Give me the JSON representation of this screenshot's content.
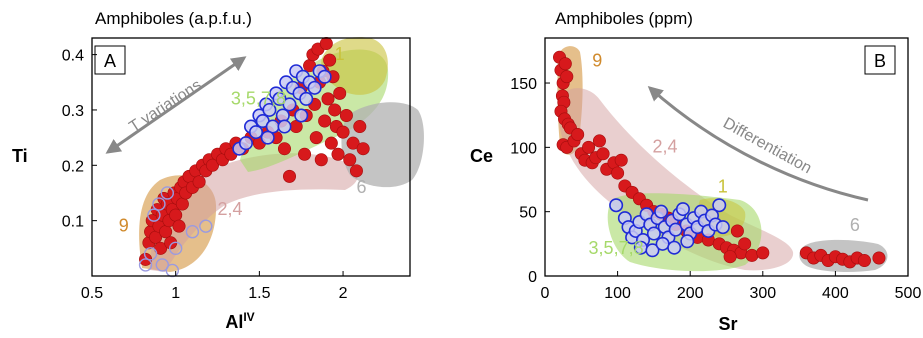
{
  "chart_data": [
    {
      "panel": "A",
      "type": "scatter",
      "title": "Amphiboles (a.p.f.u.)",
      "xlabel": "Al",
      "xlabel_sup": "IV",
      "ylabel": "Ti",
      "xlim": [
        0.5,
        2.4
      ],
      "ylim": [
        0.0,
        0.43
      ],
      "xticks": [
        "0.5",
        "1",
        "1.5",
        "2"
      ],
      "yticks": [
        "0.1",
        "0.2",
        "0.3",
        "0.4"
      ],
      "xtick_values": [
        0.5,
        1,
        1.5,
        2
      ],
      "ytick_values": [
        0.1,
        0.2,
        0.3,
        0.4
      ],
      "groups": [
        {
          "label": "9",
          "color": "#d08a2c",
          "label_at": [
            0.66,
            0.08
          ]
        },
        {
          "label": "2,4",
          "color": "#d4a0a0",
          "label_at": [
            1.25,
            0.11
          ]
        },
        {
          "label": "3,5,7,8",
          "color": "#a6d96a",
          "label_at": [
            1.33,
            0.31
          ]
        },
        {
          "label": "1",
          "color": "#c9c23a",
          "label_at": [
            1.95,
            0.39
          ]
        },
        {
          "label": "6",
          "color": "#b0b0b0",
          "label_at": [
            2.08,
            0.15
          ]
        }
      ],
      "annotation": {
        "text": "T variations",
        "arrow": "double"
      },
      "series": [
        {
          "marker": "filled-red",
          "color": "#d7191c",
          "points": [
            [
              0.82,
              0.03
            ],
            [
              0.84,
              0.06
            ],
            [
              0.85,
              0.08
            ],
            [
              0.86,
              0.1
            ],
            [
              0.88,
              0.07
            ],
            [
              0.89,
              0.12
            ],
            [
              0.9,
              0.09
            ],
            [
              0.91,
              0.05
            ],
            [
              0.92,
              0.11
            ],
            [
              0.93,
              0.14
            ],
            [
              0.94,
              0.08
            ],
            [
              0.95,
              0.13
            ],
            [
              0.96,
              0.1
            ],
            [
              0.97,
              0.06
            ],
            [
              0.98,
              0.12
            ],
            [
              0.99,
              0.15
            ],
            [
              1.0,
              0.11
            ],
            [
              1.01,
              0.14
            ],
            [
              1.02,
              0.09
            ],
            [
              1.03,
              0.16
            ],
            [
              1.04,
              0.13
            ],
            [
              1.05,
              0.17
            ],
            [
              1.06,
              0.15
            ],
            [
              1.08,
              0.18
            ],
            [
              1.1,
              0.16
            ],
            [
              1.12,
              0.19
            ],
            [
              1.14,
              0.17
            ],
            [
              1.16,
              0.2
            ],
            [
              1.18,
              0.19
            ],
            [
              1.2,
              0.21
            ],
            [
              1.22,
              0.2
            ],
            [
              1.25,
              0.22
            ],
            [
              1.28,
              0.21
            ],
            [
              1.3,
              0.23
            ],
            [
              1.33,
              0.22
            ],
            [
              1.36,
              0.24
            ],
            [
              1.4,
              0.23
            ],
            [
              1.45,
              0.25
            ],
            [
              1.5,
              0.24
            ],
            [
              1.55,
              0.26
            ],
            [
              1.6,
              0.25
            ],
            [
              1.63,
              0.28
            ],
            [
              1.65,
              0.23
            ],
            [
              1.68,
              0.18
            ],
            [
              1.7,
              0.3
            ],
            [
              1.72,
              0.27
            ],
            [
              1.75,
              0.34
            ],
            [
              1.77,
              0.22
            ],
            [
              1.78,
              0.29
            ],
            [
              1.8,
              0.38
            ],
            [
              1.82,
              0.4
            ],
            [
              1.83,
              0.31
            ],
            [
              1.84,
              0.25
            ],
            [
              1.85,
              0.41
            ],
            [
              1.86,
              0.35
            ],
            [
              1.87,
              0.21
            ],
            [
              1.88,
              0.37
            ],
            [
              1.89,
              0.28
            ],
            [
              1.9,
              0.42
            ],
            [
              1.91,
              0.32
            ],
            [
              1.92,
              0.39
            ],
            [
              1.93,
              0.24
            ],
            [
              1.94,
              0.36
            ],
            [
              1.95,
              0.3
            ],
            [
              1.96,
              0.27
            ],
            [
              1.97,
              0.22
            ],
            [
              1.98,
              0.33
            ],
            [
              2.0,
              0.26
            ],
            [
              2.02,
              0.29
            ],
            [
              2.04,
              0.21
            ],
            [
              2.06,
              0.24
            ],
            [
              2.08,
              0.19
            ],
            [
              2.1,
              0.27
            ],
            [
              2.12,
              0.23
            ]
          ]
        },
        {
          "marker": "open-blue",
          "color": "#1f2bd6",
          "points": [
            [
              1.38,
              0.23
            ],
            [
              1.42,
              0.24
            ],
            [
              1.45,
              0.27
            ],
            [
              1.48,
              0.26
            ],
            [
              1.5,
              0.29
            ],
            [
              1.52,
              0.28
            ],
            [
              1.54,
              0.31
            ],
            [
              1.56,
              0.3
            ],
            [
              1.58,
              0.27
            ],
            [
              1.6,
              0.33
            ],
            [
              1.62,
              0.32
            ],
            [
              1.64,
              0.29
            ],
            [
              1.66,
              0.35
            ],
            [
              1.68,
              0.31
            ],
            [
              1.7,
              0.34
            ],
            [
              1.72,
              0.37
            ],
            [
              1.74,
              0.33
            ],
            [
              1.76,
              0.36
            ],
            [
              1.78,
              0.32
            ],
            [
              1.8,
              0.35
            ],
            [
              1.83,
              0.34
            ],
            [
              1.86,
              0.37
            ],
            [
              1.89,
              0.36
            ],
            [
              1.55,
              0.25
            ],
            [
              1.65,
              0.27
            ],
            [
              1.75,
              0.29
            ]
          ]
        },
        {
          "marker": "open-lavender",
          "color": "#9a9ae0",
          "points": [
            [
              0.82,
              0.02
            ],
            [
              0.85,
              0.04
            ],
            [
              0.87,
              0.11
            ],
            [
              0.9,
              0.13
            ],
            [
              0.92,
              0.02
            ],
            [
              0.95,
              0.15
            ],
            [
              0.98,
              0.01
            ],
            [
              1.0,
              0.05
            ],
            [
              1.1,
              0.08
            ],
            [
              1.18,
              0.09
            ]
          ]
        }
      ]
    },
    {
      "panel": "B",
      "type": "scatter",
      "title": "Amphiboles (ppm)",
      "xlabel": "Sr",
      "ylabel": "Ce",
      "xlim": [
        0,
        500
      ],
      "ylim": [
        0,
        185
      ],
      "xticks": [
        "0",
        "100",
        "200",
        "300",
        "400",
        "500"
      ],
      "yticks": [
        "0",
        "50",
        "100",
        "150"
      ],
      "xtick_values": [
        0,
        100,
        200,
        300,
        400,
        500
      ],
      "ytick_values": [
        0,
        50,
        100,
        150
      ],
      "groups": [
        {
          "label": "9",
          "color": "#d08a2c",
          "label_at": [
            65,
            163
          ]
        },
        {
          "label": "2,4",
          "color": "#d4a0a0",
          "label_at": [
            148,
            96
          ]
        },
        {
          "label": "1",
          "color": "#c9c23a",
          "label_at": [
            238,
            65
          ]
        },
        {
          "label": "3,5,7,8",
          "color": "#a6d96a",
          "label_at": [
            60,
            17
          ]
        },
        {
          "label": "6",
          "color": "#b0b0b0",
          "label_at": [
            420,
            35
          ]
        }
      ],
      "annotation": {
        "text": "Differentiation",
        "arrow": "single"
      },
      "series": [
        {
          "marker": "filled-red",
          "color": "#d7191c",
          "points": [
            [
              20,
              170
            ],
            [
              22,
              160
            ],
            [
              25,
              150
            ],
            [
              24,
              140
            ],
            [
              26,
              135
            ],
            [
              28,
              165
            ],
            [
              30,
              155
            ],
            [
              22,
              128
            ],
            [
              27,
              122
            ],
            [
              32,
              118
            ],
            [
              25,
              102
            ],
            [
              30,
              100
            ],
            [
              35,
              115
            ],
            [
              40,
              105
            ],
            [
              45,
              110
            ],
            [
              50,
              95
            ],
            [
              55,
              90
            ],
            [
              60,
              100
            ],
            [
              65,
              88
            ],
            [
              70,
              92
            ],
            [
              75,
              105
            ],
            [
              80,
              95
            ],
            [
              85,
              83
            ],
            [
              95,
              88
            ],
            [
              100,
              80
            ],
            [
              105,
              90
            ],
            [
              110,
              70
            ],
            [
              120,
              65
            ],
            [
              130,
              60
            ],
            [
              140,
              55
            ],
            [
              150,
              50
            ],
            [
              160,
              48
            ],
            [
              170,
              45
            ],
            [
              180,
              40
            ],
            [
              195,
              35
            ],
            [
              210,
              30
            ],
            [
              225,
              28
            ],
            [
              240,
              25
            ],
            [
              250,
              22
            ],
            [
              260,
              20
            ],
            [
              270,
              18
            ],
            [
              285,
              16
            ],
            [
              300,
              18
            ],
            [
              265,
              35
            ],
            [
              275,
              25
            ],
            [
              255,
              15
            ],
            [
              360,
              18
            ],
            [
              370,
              14
            ],
            [
              380,
              16
            ],
            [
              390,
              12
            ],
            [
              400,
              15
            ],
            [
              410,
              13
            ],
            [
              420,
              11
            ],
            [
              430,
              14
            ],
            [
              440,
              12
            ],
            [
              460,
              14
            ]
          ]
        },
        {
          "marker": "open-blue",
          "color": "#1f2bd6",
          "points": [
            [
              98,
              55
            ],
            [
              110,
              45
            ],
            [
              115,
              38
            ],
            [
              120,
              30
            ],
            [
              125,
              35
            ],
            [
              130,
              42
            ],
            [
              135,
              28
            ],
            [
              140,
              48
            ],
            [
              145,
              40
            ],
            [
              150,
              33
            ],
            [
              155,
              45
            ],
            [
              160,
              50
            ],
            [
              165,
              38
            ],
            [
              170,
              30
            ],
            [
              175,
              43
            ],
            [
              180,
              36
            ],
            [
              185,
              48
            ],
            [
              190,
              52
            ],
            [
              195,
              40
            ],
            [
              200,
              33
            ],
            [
              205,
              45
            ],
            [
              210,
              38
            ],
            [
              215,
              50
            ],
            [
              220,
              43
            ],
            [
              225,
              35
            ],
            [
              230,
              47
            ],
            [
              235,
              40
            ],
            [
              240,
              55
            ],
            [
              245,
              38
            ],
            [
              132,
              22
            ],
            [
              148,
              20
            ],
            [
              162,
              25
            ],
            [
              178,
              22
            ],
            [
              196,
              27
            ]
          ]
        }
      ]
    }
  ]
}
